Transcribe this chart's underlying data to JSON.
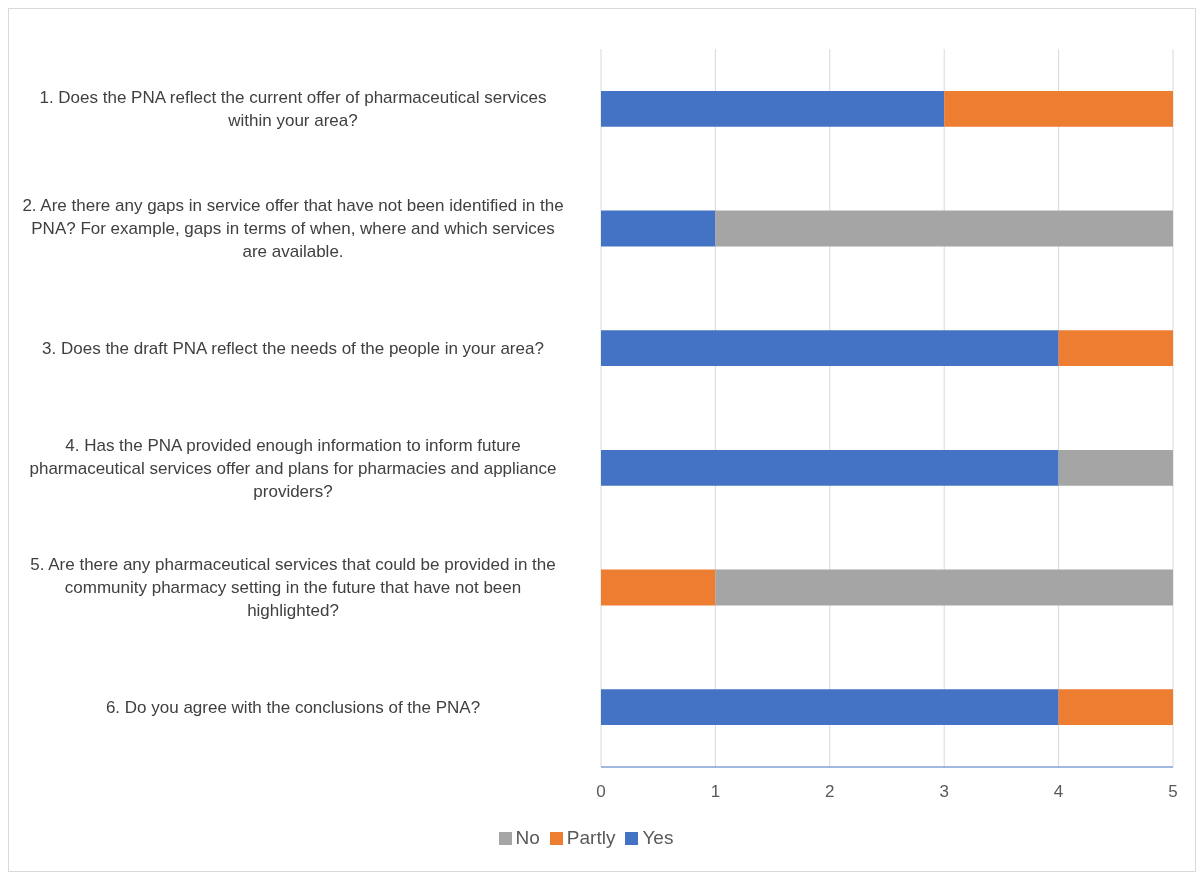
{
  "chart_data": {
    "type": "bar",
    "orientation": "horizontal",
    "stacked": true,
    "categories": [
      "1. Does the PNA reflect the current offer of pharmaceutical services within your area?",
      "2. Are there any gaps in service offer that have not been identified in the PNA? For example, gaps in terms of when, where and which services are available.",
      "3. Does the draft PNA reflect the needs of the people in your area?",
      "4. Has the PNA provided enough information to inform future pharmaceutical services offer and plans for pharmacies and appliance providers?",
      "5. Are there any pharmaceutical services that could be provided in the community pharmacy setting in the future that have not been highlighted?",
      "6. Do you agree with the conclusions of the PNA?"
    ],
    "series": [
      {
        "name": "Yes",
        "color": "#4472c4",
        "values": [
          3,
          1,
          4,
          4,
          0,
          4
        ]
      },
      {
        "name": "Partly",
        "color": "#ed7d31",
        "values": [
          2,
          0,
          1,
          0,
          1,
          1
        ]
      },
      {
        "name": "No",
        "color": "#a5a5a5",
        "values": [
          0,
          4,
          0,
          1,
          4,
          0
        ]
      }
    ],
    "xlim": [
      0,
      5
    ],
    "xticks": [
      0,
      1,
      2,
      3,
      4,
      5
    ],
    "grid": "x",
    "legend": "bottom"
  }
}
